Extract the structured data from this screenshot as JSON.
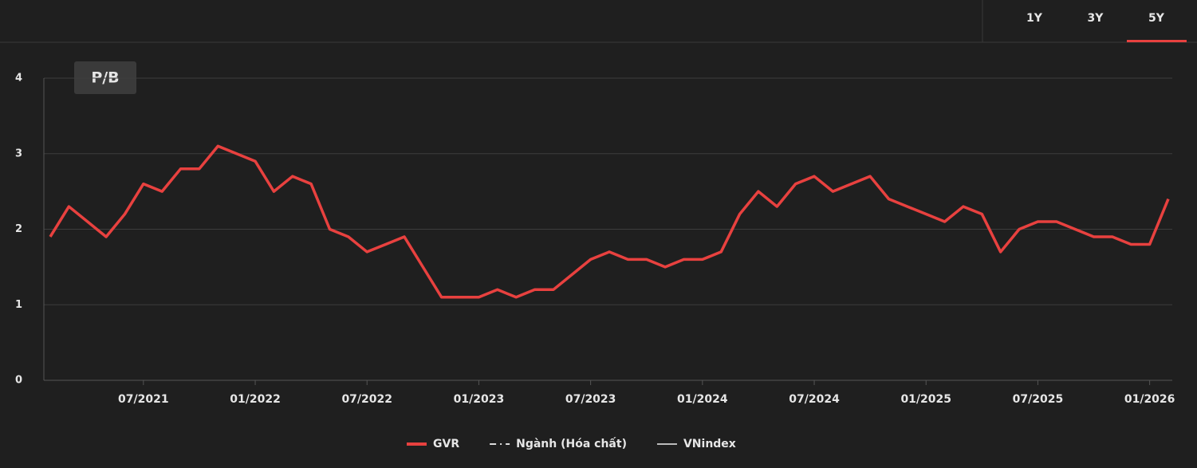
{
  "chart_data": {
    "type": "line",
    "label": "P/B",
    "ranges": [
      "1Y",
      "3Y",
      "5Y"
    ],
    "active_range": "5Y",
    "x": [
      "02/2021",
      "03/2021",
      "04/2021",
      "05/2021",
      "06/2021",
      "07/2021",
      "08/2021",
      "09/2021",
      "10/2021",
      "11/2021",
      "12/2021",
      "01/2022",
      "02/2022",
      "03/2022",
      "04/2022",
      "05/2022",
      "06/2022",
      "07/2022",
      "08/2022",
      "09/2022",
      "10/2022",
      "11/2022",
      "12/2022",
      "01/2023",
      "02/2023",
      "03/2023",
      "04/2023",
      "05/2023",
      "06/2023",
      "07/2023",
      "08/2023",
      "09/2023",
      "10/2023",
      "11/2023",
      "12/2023",
      "01/2024",
      "02/2024",
      "03/2024",
      "04/2024",
      "05/2024",
      "06/2024",
      "07/2024",
      "08/2024",
      "09/2024",
      "10/2024",
      "11/2024",
      "12/2024",
      "01/2025",
      "02/2025",
      "03/2025",
      "04/2025",
      "05/2025",
      "06/2025",
      "07/2025",
      "08/2025",
      "09/2025",
      "10/2025",
      "11/2025",
      "12/2025",
      "01/2026",
      "02/2026"
    ],
    "series": [
      {
        "name": "GVR",
        "color": "#e8413f",
        "values": [
          1.9,
          2.3,
          2.1,
          1.9,
          2.2,
          2.6,
          2.5,
          2.8,
          2.8,
          3.1,
          3.0,
          2.9,
          2.5,
          2.7,
          2.6,
          2.0,
          1.9,
          1.7,
          1.8,
          1.9,
          1.5,
          1.1,
          1.1,
          1.1,
          1.2,
          1.1,
          1.2,
          1.2,
          1.4,
          1.6,
          1.7,
          1.6,
          1.6,
          1.5,
          1.6,
          1.6,
          1.7,
          2.2,
          2.5,
          2.3,
          2.6,
          2.7,
          2.5,
          2.6,
          2.7,
          2.4,
          2.3,
          2.2,
          2.1,
          2.3,
          2.2,
          1.7,
          2.0,
          2.1,
          2.1,
          2.0,
          1.9,
          1.9,
          1.8,
          1.8,
          2.4
        ]
      }
    ],
    "legend_only": [
      {
        "name": "Ngành (Hóa chất)",
        "color": "#dddddd",
        "dash": true
      },
      {
        "name": "VNindex",
        "color": "#bbbbbb",
        "dash": false
      }
    ],
    "xlim": [
      "02/2021",
      "02/2026"
    ],
    "xticks": [
      "07/2021",
      "01/2022",
      "07/2022",
      "01/2023",
      "07/2023",
      "01/2024",
      "07/2024",
      "01/2025",
      "07/2025",
      "01/2026"
    ],
    "ylim": [
      0,
      4
    ],
    "yticks": [
      0,
      1,
      2,
      3,
      4
    ],
    "grid": true
  }
}
